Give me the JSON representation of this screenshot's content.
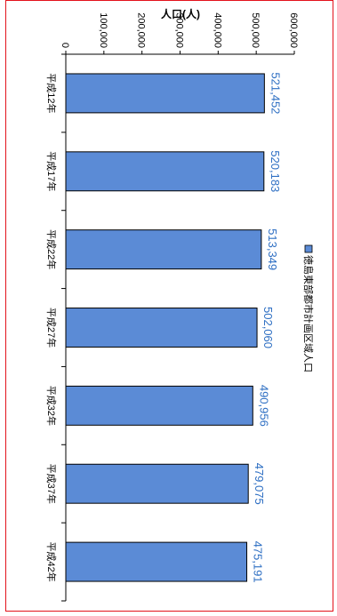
{
  "colors": {
    "bar_fill": "#5b8bd6",
    "bar_stroke": "#000000",
    "data_label": "#2e6fc3",
    "frame": "#e3121b"
  },
  "chart_data": {
    "type": "bar",
    "orientation": "vertical bars, chart rotated 90 degrees",
    "categories": [
      "平成12年",
      "平成17年",
      "平成22年",
      "平成27年",
      "平成32年",
      "平成37年",
      "平成42年"
    ],
    "series": [
      {
        "name": "徳島東部都市計画区域人口",
        "values": [
          521452,
          520183,
          513349,
          502060,
          490956,
          479075,
          475191
        ]
      }
    ],
    "data_labels": [
      "521,452",
      "520,183",
      "513,349",
      "502,060",
      "490,956",
      "479,075",
      "475,191"
    ],
    "ylabel": "人口(人)",
    "ylim": [
      0,
      600000
    ],
    "yticks": [
      0,
      100000,
      200000,
      300000,
      400000,
      500000,
      600000
    ],
    "ytick_labels": [
      "0",
      "100,000",
      "200,000",
      "300,000",
      "400,000",
      "500,000",
      "600,000"
    ],
    "grid": false,
    "legend_position": "top"
  }
}
